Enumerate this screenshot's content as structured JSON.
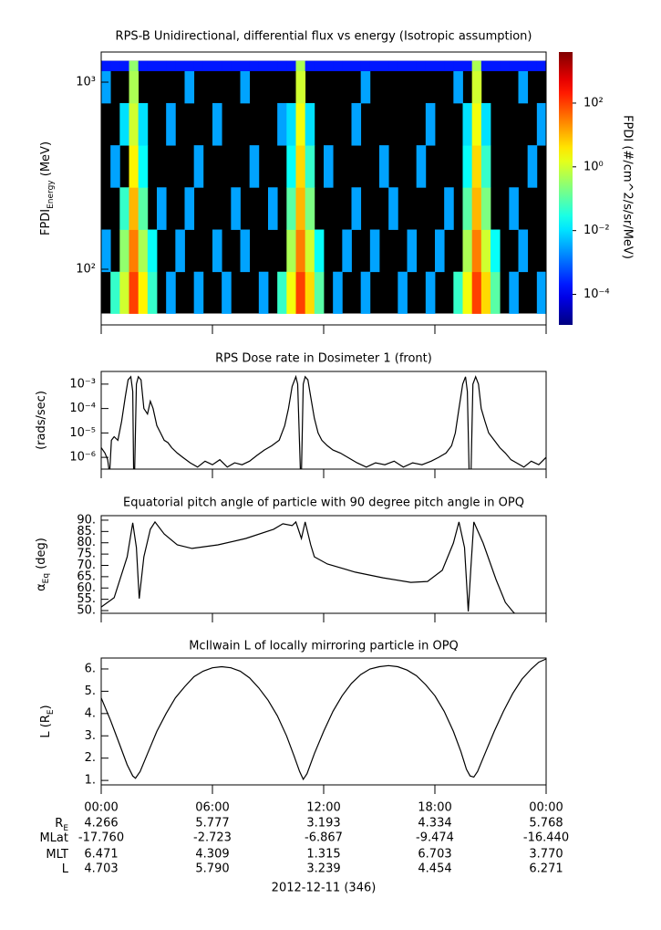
{
  "chart_data": [
    {
      "type": "heatmap",
      "title": "RPS-B  Unidirectional, differential flux vs energy (Isotropic assumption)",
      "ylabel": [
        {
          "text": "FPDI"
        },
        {
          "sub": "Energy"
        },
        {
          "text": " (MeV)"
        }
      ],
      "xlim": [
        0,
        24
      ],
      "xticks": [
        0,
        6,
        12,
        18,
        24
      ],
      "ylim": [
        50.4,
        1449
      ],
      "ylog": true,
      "yticks": [
        {
          "value": 100,
          "label": "10²"
        },
        {
          "value": 1000,
          "label": "10³"
        }
      ],
      "background": "#000000",
      "xbins": [
        0,
        0.5,
        1,
        1.5,
        2,
        2.5,
        3,
        3.5,
        4,
        4.5,
        5,
        5.5,
        6,
        6.5,
        7,
        7.5,
        8,
        8.5,
        9,
        9.5,
        10,
        10.5,
        11,
        11.5,
        12,
        12.5,
        13,
        13.5,
        14,
        14.5,
        15,
        15.5,
        16,
        16.5,
        17,
        17.5,
        18,
        18.5,
        19,
        19.5,
        20,
        20.5,
        21,
        21.5,
        22,
        22.5,
        23,
        23.5,
        24
      ],
      "ybins": [
        58,
        97,
        163,
        274,
        460,
        773,
        1150,
        1300
      ],
      "values": [
        [
          null,
          0.05,
          1,
          100,
          3,
          0.05,
          null,
          0.003,
          null,
          null,
          0.003,
          null,
          null,
          0.003,
          null,
          null,
          null,
          0.003,
          null,
          0.05,
          2,
          100,
          5,
          0.1,
          null,
          0.003,
          null,
          null,
          0.003,
          null,
          null,
          null,
          0.003,
          null,
          null,
          0.003,
          null,
          null,
          0.05,
          2,
          100,
          5,
          0.1,
          null,
          0.003,
          null,
          null,
          0.003
        ],
        [
          0.003,
          null,
          0.3,
          30,
          0.5,
          0.02,
          null,
          null,
          0.003,
          null,
          null,
          null,
          0.003,
          null,
          null,
          0.003,
          null,
          null,
          null,
          null,
          0.5,
          30,
          1,
          0.02,
          null,
          null,
          0.003,
          null,
          null,
          0.003,
          null,
          null,
          null,
          0.003,
          null,
          null,
          0.003,
          null,
          null,
          0.5,
          30,
          1,
          0.02,
          null,
          null,
          0.003,
          null,
          null
        ],
        [
          null,
          null,
          0.05,
          10,
          0.1,
          null,
          0.003,
          null,
          null,
          0.003,
          null,
          null,
          null,
          null,
          0.003,
          null,
          null,
          null,
          0.003,
          null,
          0.1,
          10,
          0.2,
          null,
          null,
          null,
          null,
          0.003,
          null,
          null,
          null,
          0.003,
          null,
          null,
          null,
          null,
          null,
          0.003,
          null,
          0.1,
          10,
          0.2,
          null,
          null,
          0.003,
          null,
          null,
          null
        ],
        [
          null,
          0.003,
          null,
          3,
          0.02,
          null,
          null,
          null,
          null,
          null,
          0.003,
          null,
          null,
          null,
          null,
          null,
          0.003,
          null,
          null,
          null,
          0.02,
          5,
          0.05,
          null,
          0.003,
          null,
          null,
          null,
          null,
          null,
          0.003,
          null,
          null,
          null,
          0.003,
          null,
          null,
          null,
          null,
          0.02,
          5,
          0.05,
          null,
          null,
          null,
          null,
          0.003,
          null
        ],
        [
          null,
          null,
          0.01,
          1,
          0.01,
          null,
          null,
          0.003,
          null,
          null,
          null,
          null,
          0.003,
          null,
          null,
          null,
          null,
          null,
          null,
          0.003,
          0.01,
          2,
          0.01,
          null,
          null,
          null,
          null,
          0.003,
          null,
          null,
          null,
          null,
          null,
          null,
          null,
          0.003,
          null,
          null,
          null,
          0.01,
          2,
          0.01,
          null,
          null,
          null,
          null,
          null,
          0.003
        ],
        [
          0.003,
          null,
          null,
          0.5,
          null,
          null,
          null,
          null,
          null,
          0.003,
          null,
          null,
          null,
          null,
          null,
          0.003,
          null,
          null,
          null,
          null,
          null,
          1,
          null,
          null,
          null,
          null,
          null,
          null,
          0.003,
          null,
          null,
          null,
          null,
          null,
          null,
          null,
          null,
          null,
          0.003,
          null,
          1,
          null,
          null,
          null,
          null,
          0.003,
          null,
          null
        ],
        [
          0.0002,
          0.0002,
          0.0002,
          0.3,
          0.0002,
          0.0002,
          0.0002,
          0.0002,
          0.0002,
          0.0002,
          0.0002,
          0.0002,
          0.0002,
          0.0002,
          0.0002,
          0.0002,
          0.0002,
          0.0002,
          0.0002,
          0.0002,
          0.0002,
          0.5,
          0.0002,
          0.0002,
          0.0002,
          0.0002,
          0.0002,
          0.0002,
          0.0002,
          0.0002,
          0.0002,
          0.0002,
          0.0002,
          0.0002,
          0.0002,
          0.0002,
          0.0002,
          0.0002,
          0.0002,
          0.0002,
          0.5,
          0.0002,
          0.0002,
          0.0002,
          0.0002,
          0.0002,
          0.0002,
          0.0002
        ]
      ],
      "colorbar": {
        "label": "FPDI (#/cm^2/s/sr/MeV)",
        "colormap": "jet",
        "log": true,
        "clim": [
          1.1e-05,
          4000
        ],
        "ticks": [
          {
            "value": 0.0001,
            "label": "10⁻⁴"
          },
          {
            "value": 0.01,
            "label": "10⁻²"
          },
          {
            "value": 1,
            "label": "10⁰"
          },
          {
            "value": 100,
            "label": "10²"
          }
        ]
      }
    },
    {
      "type": "line",
      "title": "RPS  Dose rate in Dosimeter 1 (front)",
      "ylabel": [
        {
          "text": "(rads/sec)"
        }
      ],
      "xlim": [
        0,
        24
      ],
      "xticks": [
        0,
        6,
        12,
        18,
        24
      ],
      "ylim": [
        3.3e-07,
        0.0033
      ],
      "ylog": true,
      "yticks": [
        {
          "value": 0.001,
          "label": "10⁻³"
        },
        {
          "value": 0.0001,
          "label": "10⁻⁴"
        },
        {
          "value": 1e-05,
          "label": "10⁻⁵"
        },
        {
          "value": 1e-06,
          "label": "10⁻⁶"
        }
      ],
      "color": "#000000",
      "x": [
        0,
        0.2,
        0.35,
        0.45,
        0.55,
        0.7,
        0.9,
        1.1,
        1.3,
        1.45,
        1.6,
        1.7,
        1.75,
        1.8,
        1.9,
        2.0,
        2.15,
        2.3,
        2.5,
        2.65,
        2.8,
        3.0,
        3.2,
        3.4,
        3.6,
        3.8,
        4.1,
        4.4,
        4.8,
        5.2,
        5.6,
        6.0,
        6.4,
        6.8,
        7.2,
        7.6,
        8.0,
        8.4,
        8.8,
        9.2,
        9.6,
        9.9,
        10.1,
        10.3,
        10.5,
        10.6,
        10.75,
        10.8,
        10.9,
        11.0,
        11.15,
        11.3,
        11.5,
        11.7,
        11.9,
        12.2,
        12.5,
        12.9,
        13.3,
        13.8,
        14.3,
        14.8,
        15.3,
        15.8,
        16.3,
        16.8,
        17.3,
        17.8,
        18.2,
        18.6,
        18.9,
        19.1,
        19.3,
        19.5,
        19.65,
        19.75,
        19.85,
        19.95,
        20.05,
        20.2,
        20.35,
        20.5,
        20.7,
        20.9,
        21.2,
        21.5,
        21.8,
        22.1,
        22.4,
        22.8,
        23.2,
        23.6,
        24
      ],
      "values": [
        2.5e-06,
        1.5e-06,
        8e-07,
        2e-07,
        5e-06,
        7e-06,
        5e-06,
        3e-05,
        0.0003,
        0.0015,
        0.002,
        0.0005,
        2e-07,
        2e-07,
        0.001,
        0.002,
        0.0015,
        0.0001,
        6e-05,
        0.0002,
        0.0001,
        2e-05,
        1e-05,
        5e-06,
        4e-06,
        2.5e-06,
        1.5e-06,
        1e-06,
        6e-07,
        4e-07,
        7e-07,
        5e-07,
        8e-07,
        4e-07,
        6e-07,
        5e-07,
        7e-07,
        1.2e-06,
        2e-06,
        3e-06,
        5e-06,
        2e-05,
        0.0001,
        0.0008,
        0.002,
        0.001,
        2e-07,
        2e-07,
        0.001,
        0.002,
        0.0015,
        0.0003,
        4e-05,
        1e-05,
        5e-06,
        3e-06,
        2e-06,
        1.5e-06,
        1e-06,
        6e-07,
        4e-07,
        6e-07,
        5e-07,
        7e-07,
        4e-07,
        6e-07,
        5e-07,
        7e-07,
        1e-06,
        1.5e-06,
        3e-06,
        1e-05,
        0.0001,
        0.001,
        0.002,
        0.0005,
        2e-07,
        2e-07,
        0.001,
        0.002,
        0.001,
        0.0001,
        3e-05,
        1e-05,
        5e-06,
        2.5e-06,
        1.5e-06,
        8e-07,
        6e-07,
        4e-07,
        7e-07,
        5e-07,
        1e-06
      ]
    },
    {
      "type": "line",
      "title": "Equatorial pitch angle of particle with 90 degree pitch angle in OPQ",
      "ylabel": [
        {
          "text": "α"
        },
        {
          "sub": "Eq"
        },
        {
          "text": " (deg)"
        }
      ],
      "xlim": [
        0,
        24
      ],
      "xticks": [
        0,
        6,
        12,
        18,
        24
      ],
      "ylim": [
        48.8,
        92
      ],
      "yticks": [
        {
          "value": 90,
          "label": "90."
        },
        {
          "value": 85,
          "label": "85."
        },
        {
          "value": 80,
          "label": "80."
        },
        {
          "value": 75,
          "label": "75."
        },
        {
          "value": 70,
          "label": "70."
        },
        {
          "value": 65,
          "label": "65."
        },
        {
          "value": 60,
          "label": "60."
        },
        {
          "value": 55,
          "label": "55."
        },
        {
          "value": 50,
          "label": "50."
        }
      ],
      "color": "#000000",
      "x": [
        0,
        0.7,
        1.4,
        1.7,
        1.9,
        2.05,
        2.3,
        2.65,
        2.9,
        3.4,
        4.1,
        4.9,
        6.3,
        7.8,
        9.3,
        9.8,
        10.3,
        10.5,
        10.8,
        11.0,
        11.3,
        11.5,
        12.2,
        13.7,
        15.2,
        16.7,
        17.6,
        18.4,
        19.0,
        19.3,
        19.6,
        19.8,
        19.95,
        20.1,
        20.6,
        21.3,
        21.8,
        22.2,
        22.3
      ],
      "values": [
        51.6,
        55.7,
        73.8,
        88.8,
        77.9,
        55.3,
        73.8,
        86.0,
        89.2,
        83.9,
        79.1,
        77.5,
        79.1,
        81.9,
        86.0,
        88.4,
        87.6,
        89.2,
        81.9,
        89.2,
        79.1,
        73.8,
        70.6,
        67.0,
        64.5,
        62.5,
        62.9,
        67.8,
        79.9,
        89.2,
        77.9,
        49.6,
        69.8,
        89.2,
        79.9,
        63.7,
        53.6,
        49.6,
        48.8
      ]
    },
    {
      "type": "line",
      "title": "McIlwain L of locally mirroring particle in OPQ",
      "ylabel": [
        {
          "text": "L (R"
        },
        {
          "sub": "E"
        },
        {
          "text": ")"
        }
      ],
      "xlim": [
        0,
        24
      ],
      "xticks": [
        {
          "value": 0,
          "label": "00:00"
        },
        {
          "value": 6,
          "label": "06:00"
        },
        {
          "value": 12,
          "label": "12:00"
        },
        {
          "value": 18,
          "label": "18:00"
        },
        {
          "value": 24,
          "label": "00:00"
        }
      ],
      "ylim": [
        0.8,
        6.49
      ],
      "yticks": [
        {
          "value": 1,
          "label": "1."
        },
        {
          "value": 2,
          "label": "2."
        },
        {
          "value": 3,
          "label": "3."
        },
        {
          "value": 4,
          "label": "4."
        },
        {
          "value": 5,
          "label": "5."
        },
        {
          "value": 6,
          "label": "6."
        }
      ],
      "color": "#000000",
      "x": [
        0,
        0.5,
        1.0,
        1.4,
        1.7,
        1.85,
        2.1,
        2.5,
        3.0,
        3.5,
        4.0,
        4.5,
        5.0,
        5.5,
        6.0,
        6.5,
        7.0,
        7.5,
        8.0,
        8.5,
        9.0,
        9.5,
        10.0,
        10.4,
        10.7,
        10.9,
        11.1,
        11.5,
        12.0,
        12.5,
        13.0,
        13.5,
        14.0,
        14.5,
        15.0,
        15.5,
        16.0,
        16.5,
        17.0,
        17.5,
        18.0,
        18.5,
        19.0,
        19.4,
        19.7,
        19.9,
        20.1,
        20.3,
        20.7,
        21.2,
        21.7,
        22.2,
        22.7,
        23.2,
        23.6,
        24
      ],
      "values": [
        4.7,
        3.7,
        2.6,
        1.7,
        1.2,
        1.1,
        1.4,
        2.2,
        3.2,
        4.0,
        4.7,
        5.2,
        5.65,
        5.9,
        6.05,
        6.1,
        6.05,
        5.9,
        5.6,
        5.15,
        4.6,
        3.9,
        3.0,
        2.1,
        1.4,
        1.05,
        1.3,
        2.2,
        3.2,
        4.1,
        4.8,
        5.35,
        5.75,
        6.0,
        6.1,
        6.15,
        6.1,
        5.95,
        5.7,
        5.3,
        4.8,
        4.1,
        3.2,
        2.3,
        1.5,
        1.2,
        1.15,
        1.4,
        2.2,
        3.2,
        4.1,
        4.9,
        5.55,
        6.0,
        6.3,
        6.45
      ]
    }
  ],
  "footer": {
    "rows": [
      {
        "label": [
          {
            "text": "R"
          },
          {
            "sub": "E"
          }
        ],
        "values": [
          "4.266",
          "5.777",
          "3.193",
          "4.334",
          "5.768"
        ]
      },
      {
        "label": [
          {
            "text": "MLat"
          }
        ],
        "values": [
          "-17.760",
          "-2.723",
          "-6.867",
          "-9.474",
          "-16.440"
        ]
      },
      {
        "label": [
          {
            "text": "MLT"
          }
        ],
        "values": [
          "6.471",
          "4.309",
          "1.315",
          "6.703",
          "3.770"
        ]
      },
      {
        "label": [
          {
            "text": "L"
          }
        ],
        "values": [
          "4.703",
          "5.790",
          "3.239",
          "4.454",
          "6.271"
        ]
      }
    ],
    "date": "2012-12-11 (346)"
  }
}
